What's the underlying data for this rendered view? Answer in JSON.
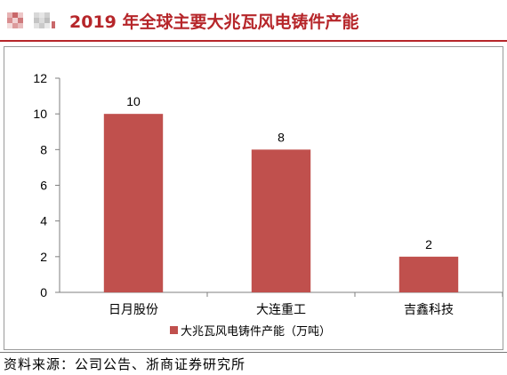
{
  "header": {
    "title": "2019 年全球主要大兆瓦风电铸件产能"
  },
  "source": {
    "text": "资料来源：公司公告、浙商证券研究所"
  },
  "colors": {
    "accent": "#b6262a",
    "bar": "#c0504d",
    "axis": "#7f7f7f"
  },
  "chart_data": {
    "type": "bar",
    "categories": [
      "日月股份",
      "大连重工",
      "吉鑫科技"
    ],
    "series": [
      {
        "name": "大兆瓦风电铸件产能（万吨）",
        "values": [
          10,
          8,
          2
        ]
      }
    ],
    "ylim": [
      0,
      12
    ],
    "yticks": [
      0,
      2,
      4,
      6,
      8,
      10,
      12
    ],
    "data_labels": true,
    "grid": false,
    "legend": "bottom"
  }
}
